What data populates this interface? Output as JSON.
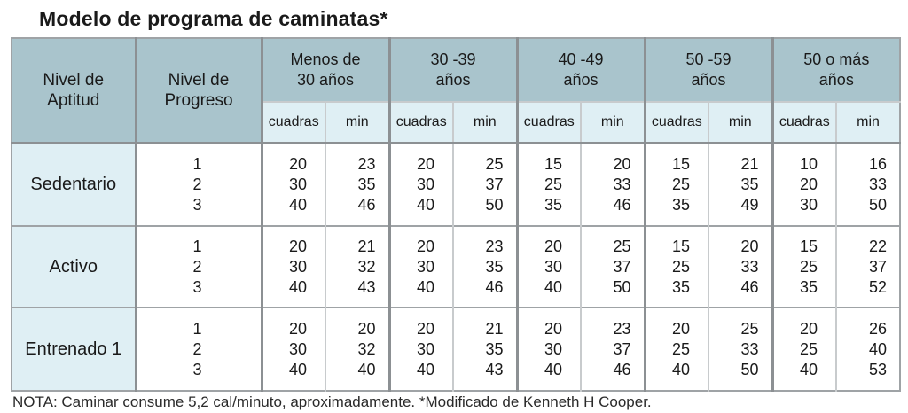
{
  "title": "Modelo de programa de caminatas*",
  "headers": {
    "nivel_aptitud": [
      "Nivel de",
      "Aptitud"
    ],
    "nivel_progreso": [
      "Nivel de",
      "Progreso"
    ],
    "age_groups": [
      [
        "Menos de",
        "30 años"
      ],
      [
        "30 -39",
        "años"
      ],
      [
        "40 -49",
        "años"
      ],
      [
        "50 -59",
        "años"
      ],
      [
        "50 o más",
        "años"
      ]
    ],
    "sub_cuadras": "cuadras",
    "sub_min": "min"
  },
  "groups": [
    {
      "aptitud": "Sedentario",
      "progreso": [
        "1",
        "2",
        "3"
      ],
      "ages": [
        {
          "cuadras": [
            "20",
            "30",
            "40"
          ],
          "min": [
            "23",
            "35",
            "46"
          ]
        },
        {
          "cuadras": [
            "20",
            "30",
            "40"
          ],
          "min": [
            "25",
            "37",
            "50"
          ]
        },
        {
          "cuadras": [
            "15",
            "25",
            "35"
          ],
          "min": [
            "20",
            "33",
            "46"
          ]
        },
        {
          "cuadras": [
            "15",
            "25",
            "35"
          ],
          "min": [
            "21",
            "35",
            "49"
          ]
        },
        {
          "cuadras": [
            "10",
            "20",
            "30"
          ],
          "min": [
            "16",
            "33",
            "50"
          ]
        }
      ]
    },
    {
      "aptitud": "Activo",
      "progreso": [
        "1",
        "2",
        "3"
      ],
      "ages": [
        {
          "cuadras": [
            "20",
            "30",
            "40"
          ],
          "min": [
            "21",
            "32",
            "43"
          ]
        },
        {
          "cuadras": [
            "20",
            "30",
            "40"
          ],
          "min": [
            "23",
            "35",
            "46"
          ]
        },
        {
          "cuadras": [
            "20",
            "30",
            "40"
          ],
          "min": [
            "25",
            "37",
            "50"
          ]
        },
        {
          "cuadras": [
            "15",
            "25",
            "35"
          ],
          "min": [
            "20",
            "33",
            "46"
          ]
        },
        {
          "cuadras": [
            "15",
            "25",
            "35"
          ],
          "min": [
            "22",
            "37",
            "52"
          ]
        }
      ]
    },
    {
      "aptitud": "Entrenado 1",
      "progreso": [
        "1",
        "2",
        "3"
      ],
      "ages": [
        {
          "cuadras": [
            "20",
            "30",
            "40"
          ],
          "min": [
            "20",
            "32",
            "40"
          ]
        },
        {
          "cuadras": [
            "20",
            "30",
            "40"
          ],
          "min": [
            "21",
            "35",
            "43"
          ]
        },
        {
          "cuadras": [
            "20",
            "30",
            "40"
          ],
          "min": [
            "23",
            "37",
            "46"
          ]
        },
        {
          "cuadras": [
            "20",
            "25",
            "40"
          ],
          "min": [
            "25",
            "33",
            "50"
          ]
        },
        {
          "cuadras": [
            "20",
            "25",
            "40"
          ],
          "min": [
            "26",
            "40",
            "53"
          ]
        }
      ]
    }
  ],
  "note": "NOTA: Caminar consume 5,2 cal/minuto, aproximadamente. *Modificado de Kenneth H Cooper."
}
